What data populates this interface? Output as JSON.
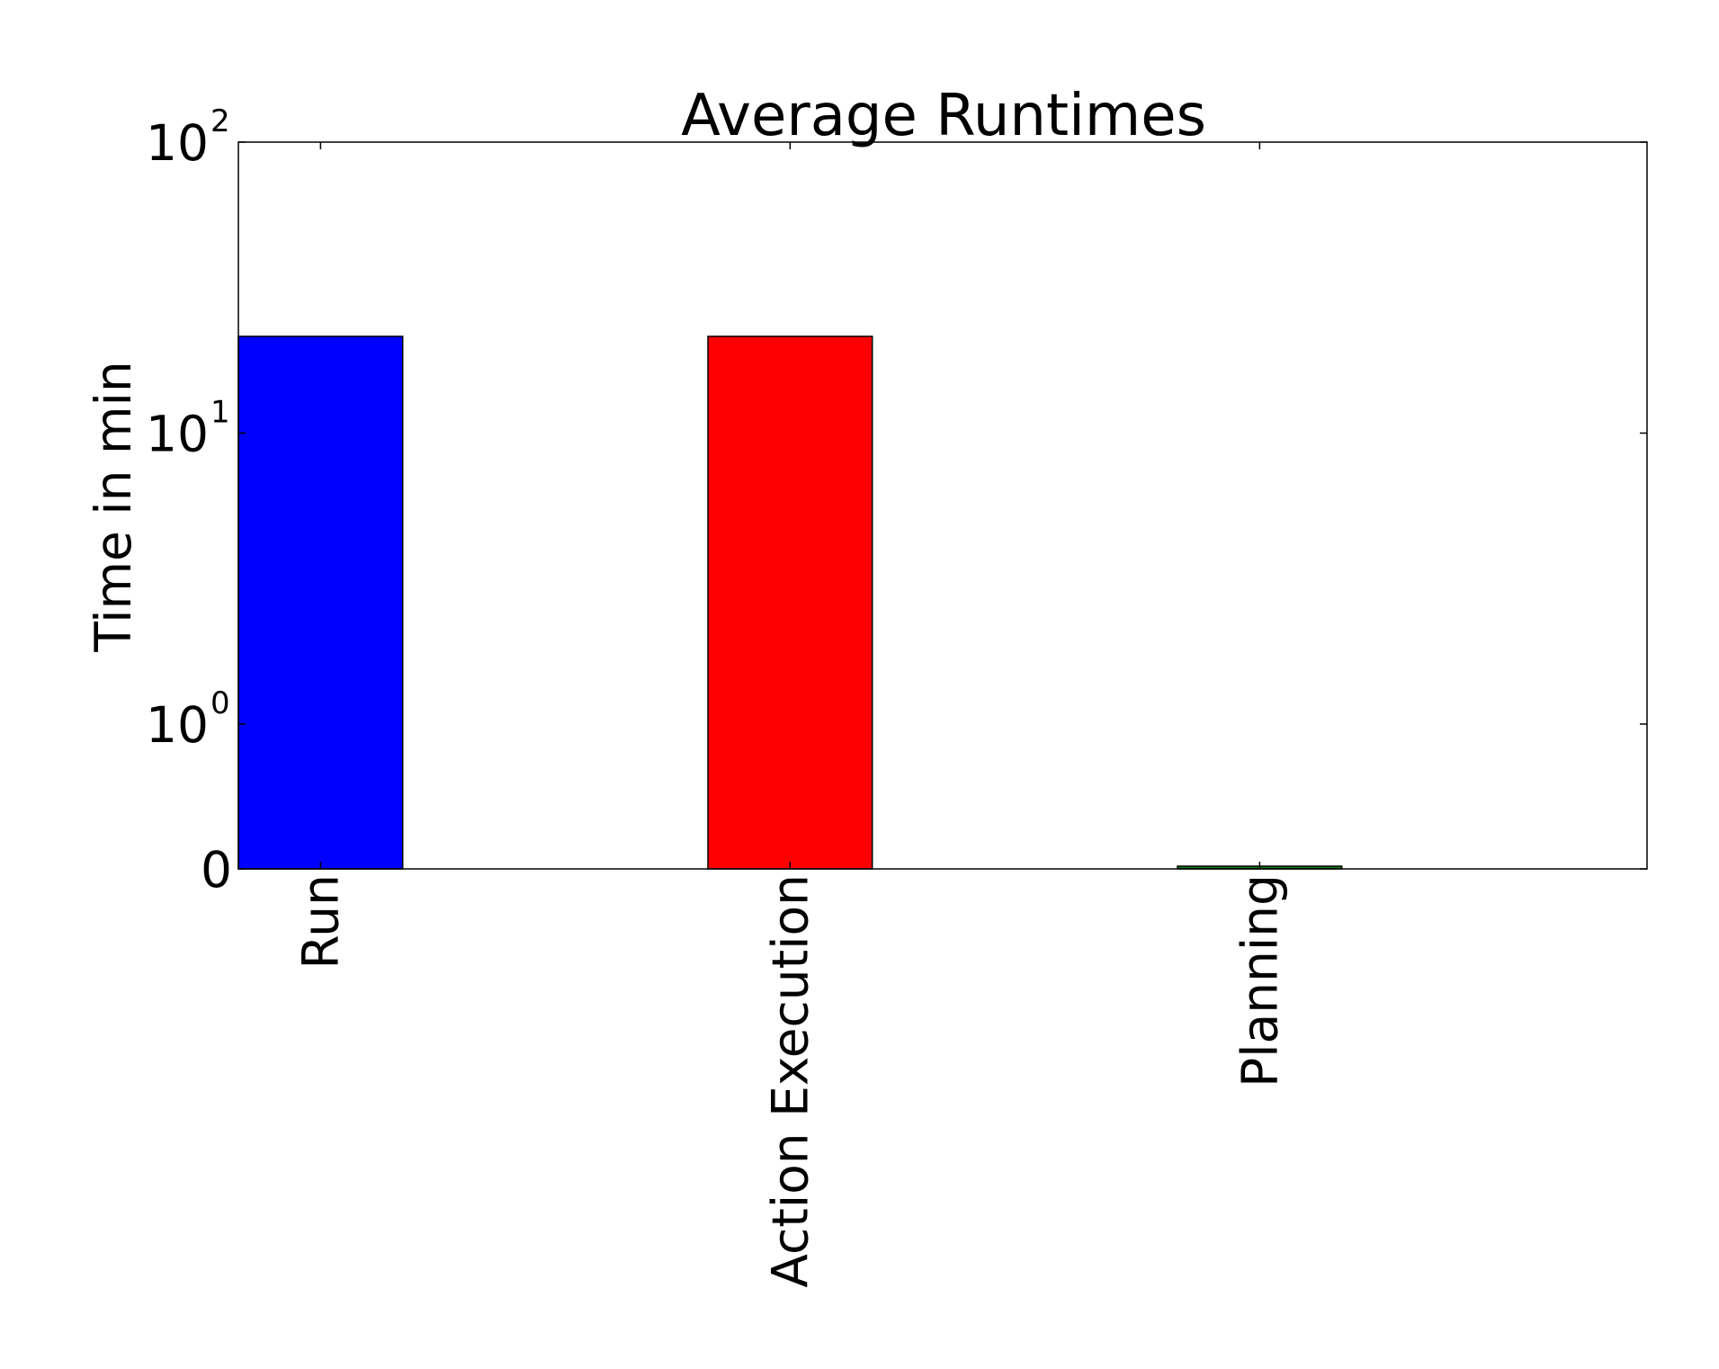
{
  "chart_data": {
    "type": "bar",
    "title": "Average Runtimes",
    "xlabel": "",
    "ylabel": "Time in min",
    "yscale": "symlog",
    "ylim": [
      0,
      100
    ],
    "yticks": [
      {
        "value": 0,
        "base": "0",
        "exp": ""
      },
      {
        "value": 1,
        "base": "10",
        "exp": "0"
      },
      {
        "value": 10,
        "base": "10",
        "exp": "1"
      },
      {
        "value": 100,
        "base": "10",
        "exp": "2"
      }
    ],
    "categories": [
      "Run",
      "Action Execution",
      "Planning"
    ],
    "values": [
      21.5,
      21.5,
      0.003
    ],
    "colors": [
      "#0000ff",
      "#ff0000",
      "#008000"
    ],
    "grid": false,
    "legend": "none"
  }
}
